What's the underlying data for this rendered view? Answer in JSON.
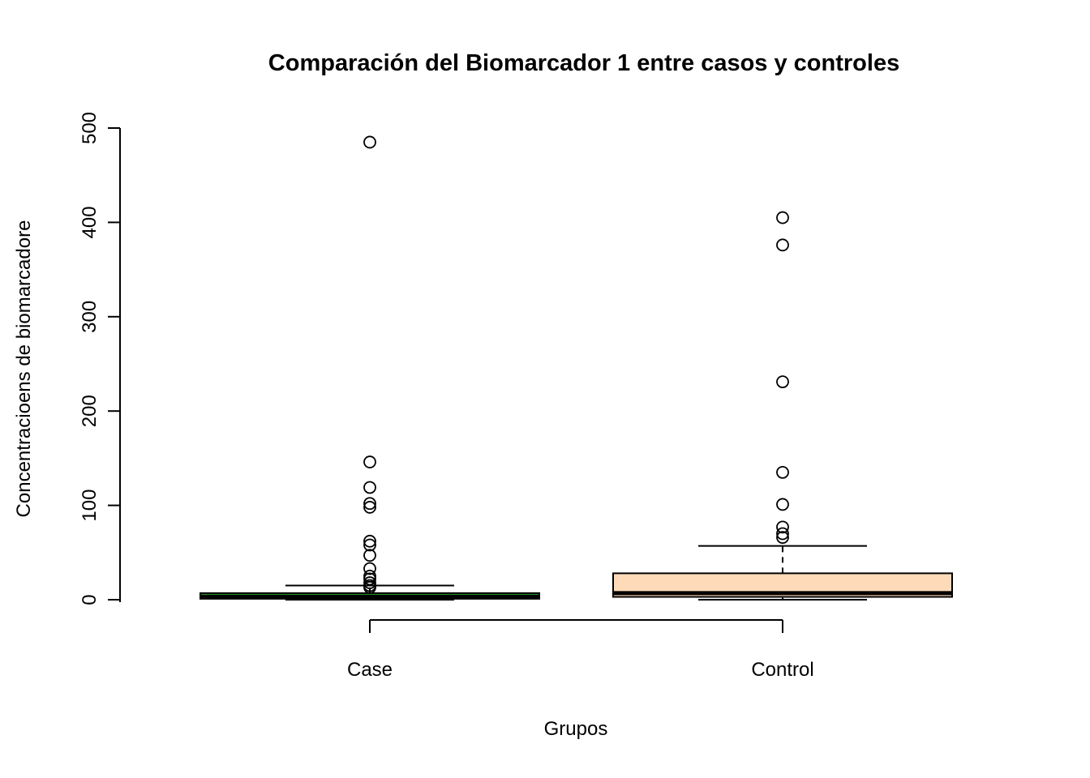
{
  "chart_data": {
    "type": "boxplot",
    "title": "Comparación del Biomarcador 1 entre casos y controles",
    "xlabel": "Grupos",
    "ylabel": "Concentracioens de biomarcadore",
    "ylim": [
      0,
      500
    ],
    "yticks": [
      0,
      100,
      200,
      300,
      400,
      500
    ],
    "grid": false,
    "legend": false,
    "groups": [
      {
        "label": "Case",
        "box_color": "#228B22",
        "stats": {
          "whisker_low": 0,
          "q1": 1,
          "median": 3,
          "q3": 7,
          "whisker_high": 15
        },
        "outliers": [
          13,
          15,
          18,
          22,
          25,
          33,
          47,
          58,
          62,
          98,
          102,
          119,
          146,
          485
        ]
      },
      {
        "label": "Control",
        "box_color": "#FFDAB9",
        "stats": {
          "whisker_low": 0,
          "q1": 3,
          "median": 7,
          "q3": 28,
          "whisker_high": 57
        },
        "outliers": [
          66,
          70,
          77,
          101,
          135,
          231,
          376,
          405
        ]
      }
    ]
  },
  "colors": {
    "stroke": "#000000",
    "background": "#ffffff"
  }
}
